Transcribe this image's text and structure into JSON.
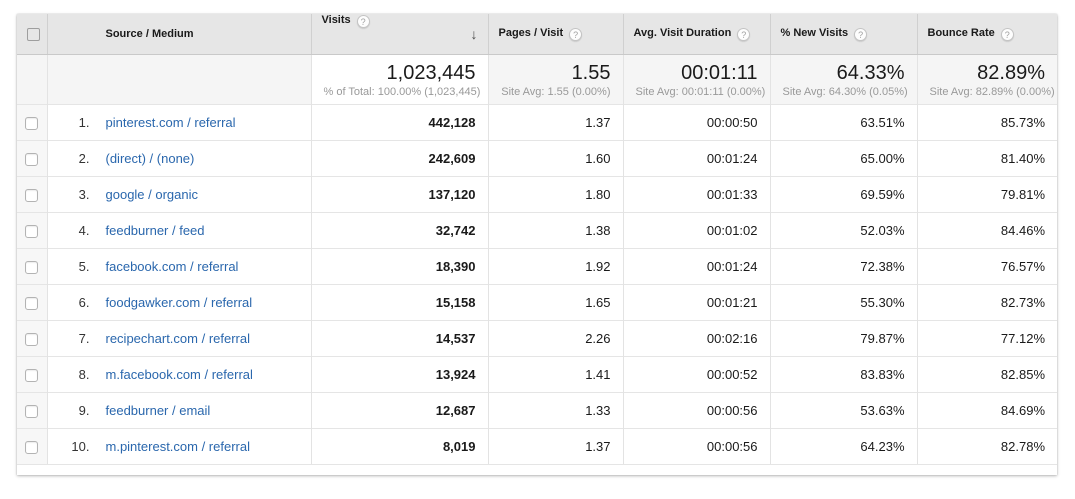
{
  "colors": {
    "link": "#2a67ad",
    "header_bg": "#e6e6e6",
    "summary_bg": "#f5f5f5",
    "row_border": "#e5e5e5",
    "text": "#1a1a1a",
    "subtext": "#999999"
  },
  "table": {
    "help_glyph": "?",
    "sort_arrow_glyph": "↓",
    "columns": {
      "source": "Source / Medium",
      "visits": "Visits",
      "pages": "Pages / Visit",
      "duration": "Avg. Visit Duration",
      "new_visits": "% New Visits",
      "bounce": "Bounce Rate"
    },
    "summary": {
      "visits": "1,023,445",
      "visits_sub": "% of Total: 100.00% (1,023,445)",
      "pages": "1.55",
      "pages_sub": "Site Avg: 1.55 (0.00%)",
      "duration": "00:01:11",
      "duration_sub": "Site Avg: 00:01:11 (0.00%)",
      "new_visits": "64.33%",
      "new_visits_sub": "Site Avg: 64.30% (0.05%)",
      "bounce": "82.89%",
      "bounce_sub": "Site Avg: 82.89% (0.00%)"
    },
    "rows": [
      {
        "index": "1.",
        "source": "pinterest.com / referral",
        "visits": "442,128",
        "pages": "1.37",
        "duration": "00:00:50",
        "new_visits": "63.51%",
        "bounce": "85.73%"
      },
      {
        "index": "2.",
        "source": "(direct) / (none)",
        "visits": "242,609",
        "pages": "1.60",
        "duration": "00:01:24",
        "new_visits": "65.00%",
        "bounce": "81.40%"
      },
      {
        "index": "3.",
        "source": "google / organic",
        "visits": "137,120",
        "pages": "1.80",
        "duration": "00:01:33",
        "new_visits": "69.59%",
        "bounce": "79.81%"
      },
      {
        "index": "4.",
        "source": "feedburner / feed",
        "visits": "32,742",
        "pages": "1.38",
        "duration": "00:01:02",
        "new_visits": "52.03%",
        "bounce": "84.46%"
      },
      {
        "index": "5.",
        "source": "facebook.com / referral",
        "visits": "18,390",
        "pages": "1.92",
        "duration": "00:01:24",
        "new_visits": "72.38%",
        "bounce": "76.57%"
      },
      {
        "index": "6.",
        "source": "foodgawker.com / referral",
        "visits": "15,158",
        "pages": "1.65",
        "duration": "00:01:21",
        "new_visits": "55.30%",
        "bounce": "82.73%"
      },
      {
        "index": "7.",
        "source": "recipechart.com / referral",
        "visits": "14,537",
        "pages": "2.26",
        "duration": "00:02:16",
        "new_visits": "79.87%",
        "bounce": "77.12%"
      },
      {
        "index": "8.",
        "source": "m.facebook.com / referral",
        "visits": "13,924",
        "pages": "1.41",
        "duration": "00:00:52",
        "new_visits": "83.83%",
        "bounce": "82.85%"
      },
      {
        "index": "9.",
        "source": "feedburner / email",
        "visits": "12,687",
        "pages": "1.33",
        "duration": "00:00:56",
        "new_visits": "53.63%",
        "bounce": "84.69%"
      },
      {
        "index": "10.",
        "source": "m.pinterest.com / referral",
        "visits": "8,019",
        "pages": "1.37",
        "duration": "00:00:56",
        "new_visits": "64.23%",
        "bounce": "82.78%"
      }
    ]
  }
}
